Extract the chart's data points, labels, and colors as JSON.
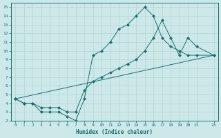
{
  "xlabel": "Humidex (Indice chaleur)",
  "xlim": [
    -0.5,
    23.5
  ],
  "ylim": [
    2,
    15.5
  ],
  "xticks": [
    0,
    1,
    2,
    3,
    4,
    5,
    6,
    7,
    8,
    9,
    10,
    11,
    12,
    13,
    14,
    15,
    16,
    17,
    18,
    19,
    20,
    21,
    23
  ],
  "yticks": [
    2,
    3,
    4,
    5,
    6,
    7,
    8,
    9,
    10,
    11,
    12,
    13,
    14,
    15
  ],
  "bg_color": "#cce8e8",
  "grid_color": "#b8d8d8",
  "line_color": "#1a7070",
  "line1_x": [
    0,
    1,
    2,
    3,
    4,
    5,
    6,
    7,
    8,
    9,
    10,
    11,
    12,
    13,
    14,
    15,
    16,
    17,
    18,
    19,
    20,
    21,
    23
  ],
  "line1_y": [
    4.5,
    4.0,
    4.0,
    3.0,
    3.0,
    3.0,
    2.5,
    2.0,
    4.5,
    9.5,
    10.0,
    11.0,
    12.5,
    13.0,
    14.0,
    15.0,
    14.0,
    11.5,
    10.5,
    10.0,
    9.5,
    9.5,
    9.5
  ],
  "line2_x": [
    0,
    1,
    2,
    3,
    4,
    5,
    6,
    7,
    8,
    9,
    10,
    11,
    12,
    13,
    14,
    15,
    16,
    17,
    18,
    19,
    20,
    21,
    23
  ],
  "line2_y": [
    4.5,
    4.0,
    4.0,
    3.5,
    3.5,
    3.5,
    3.0,
    3.0,
    5.5,
    6.5,
    7.0,
    7.5,
    8.0,
    8.5,
    9.0,
    10.0,
    11.5,
    13.5,
    11.5,
    9.5,
    11.5,
    10.5,
    9.5
  ],
  "line3_x": [
    0,
    23
  ],
  "line3_y": [
    4.5,
    9.5
  ],
  "markersize": 2.5
}
